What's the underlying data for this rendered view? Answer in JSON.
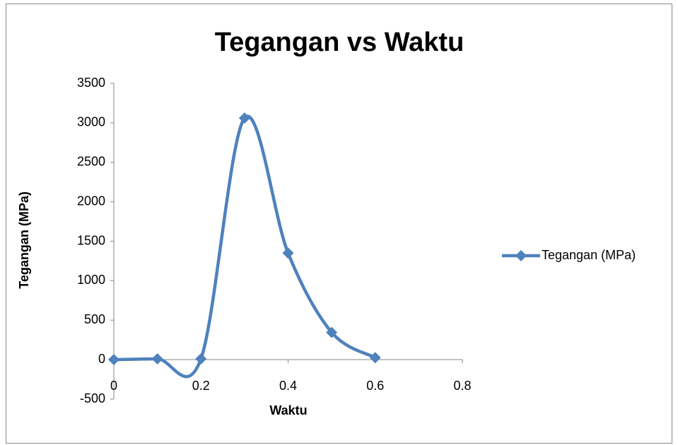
{
  "chart_data": {
    "type": "line",
    "title": "Tegangan vs Waktu",
    "x_label": "Waktu",
    "y_label": "Tegangan (MPa)",
    "x": [
      0,
      0.1,
      0.2,
      0.3,
      0.4,
      0.5,
      0.6
    ],
    "series": [
      {
        "name": "Tegangan (MPa)",
        "color": "#4f81bd",
        "values": [
          0,
          10,
          10,
          3060,
          1350,
          345,
          25
        ]
      }
    ],
    "xlim": [
      0,
      0.8
    ],
    "xticks": [
      0,
      0.2,
      0.4,
      0.6,
      0.8
    ],
    "ylim": [
      -500,
      3500
    ],
    "yticks": [
      -500,
      0,
      500,
      1000,
      1500,
      2000,
      2500,
      3000,
      3500
    ],
    "grid": false,
    "smooth": true,
    "marker": "diamond",
    "legend": "right"
  }
}
